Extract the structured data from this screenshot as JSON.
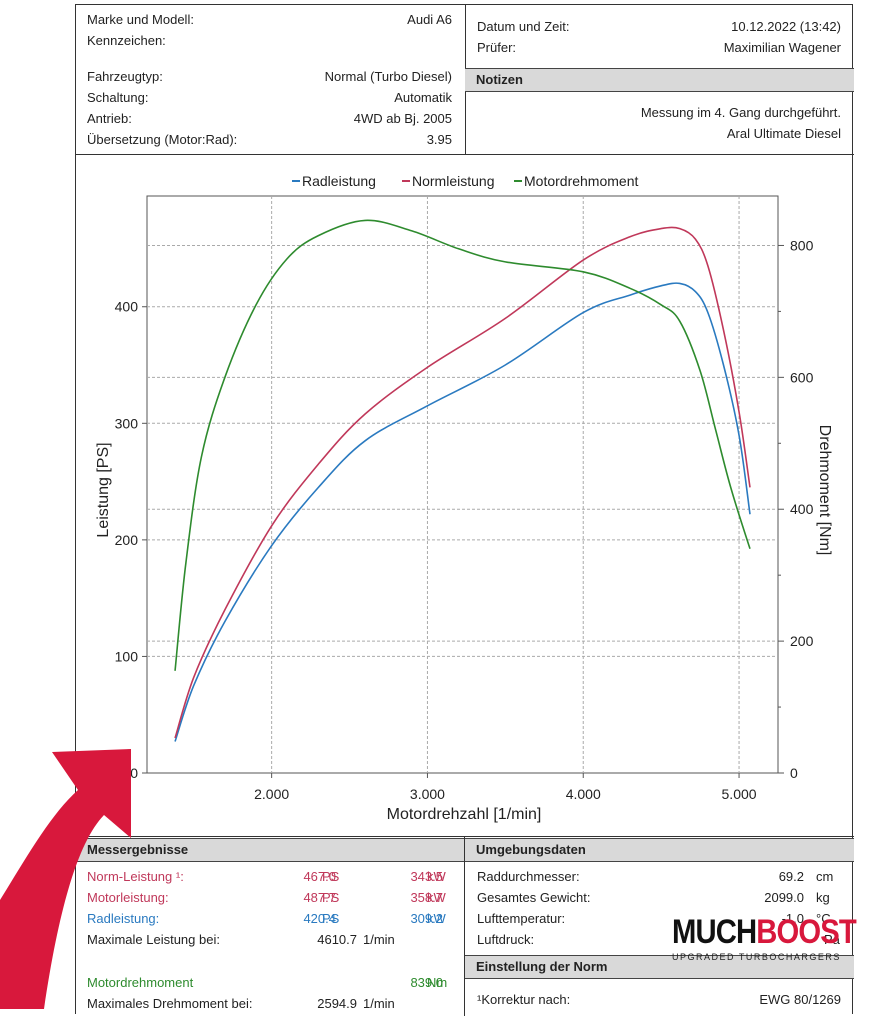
{
  "vehicle": {
    "make_label": "Marke und Modell:",
    "make_value": "Audi A6",
    "plate_label": "Kennzeichen:",
    "type_label": "Fahrzeugtyp:",
    "type_value": "Normal (Turbo Diesel)",
    "gear_label": "Schaltung:",
    "gear_value": "Automatik",
    "drive_label": "Antrieb:",
    "drive_value": "4WD ab Bj. 2005",
    "ratio_label": "Übersetzung (Motor:Rad):",
    "ratio_value": "3.95"
  },
  "test": {
    "date_label": "Datum und Zeit:",
    "date_value": "10.12.2022 (13:42)",
    "tester_label": "Prüfer:",
    "tester_value": "Maximilian Wagener"
  },
  "notes": {
    "title": "Notizen",
    "line1": "Messung im 4. Gang durchgeführt.",
    "line2": "Aral Ultimate Diesel"
  },
  "chart_data": {
    "type": "line",
    "xlabel": "Motordrehzahl [1/min]",
    "ylabel": "Leistung [PS]",
    "y2label": "Drehmoment [Nm]",
    "xlim": [
      1200,
      5250
    ],
    "ylim": [
      0,
      495
    ],
    "y2lim": [
      0,
      875
    ],
    "x_ticks": [
      2000,
      3000,
      4000,
      5000
    ],
    "x_tick_labels": [
      "2.000",
      "3.000",
      "4.000",
      "5.000"
    ],
    "y_ticks": [
      0,
      100,
      200,
      300,
      400
    ],
    "y_tick_labels": [
      "0",
      "100",
      "200",
      "300",
      "400"
    ],
    "y2_ticks": [
      0,
      200,
      400,
      600,
      800
    ],
    "y2_tick_labels": [
      "0",
      "200",
      "400",
      "600",
      "800"
    ],
    "grid": true,
    "legend_position": "top",
    "series": [
      {
        "name": "Radleistung",
        "axis": "left",
        "color": "#2a7ac0",
        "points": [
          [
            1380,
            27
          ],
          [
            1500,
            75
          ],
          [
            1700,
            130
          ],
          [
            2000,
            195
          ],
          [
            2300,
            245
          ],
          [
            2600,
            285
          ],
          [
            3000,
            315
          ],
          [
            3500,
            350
          ],
          [
            4000,
            395
          ],
          [
            4300,
            410
          ],
          [
            4500,
            418
          ],
          [
            4620,
            420
          ],
          [
            4720,
            413
          ],
          [
            4800,
            395
          ],
          [
            4900,
            350
          ],
          [
            5000,
            290
          ],
          [
            5070,
            222
          ]
        ]
      },
      {
        "name": "Normleistung",
        "axis": "left",
        "color": "#c0385a",
        "points": [
          [
            1380,
            30
          ],
          [
            1500,
            82
          ],
          [
            1700,
            140
          ],
          [
            2000,
            212
          ],
          [
            2300,
            265
          ],
          [
            2600,
            308
          ],
          [
            3000,
            348
          ],
          [
            3500,
            390
          ],
          [
            4000,
            440
          ],
          [
            4300,
            460
          ],
          [
            4500,
            467
          ],
          [
            4620,
            467
          ],
          [
            4720,
            458
          ],
          [
            4800,
            435
          ],
          [
            4900,
            380
          ],
          [
            5000,
            310
          ],
          [
            5070,
            245
          ]
        ]
      },
      {
        "name": "Motordrehmoment",
        "axis": "right",
        "color": "#2e8b2e",
        "points": [
          [
            1380,
            155
          ],
          [
            1450,
            320
          ],
          [
            1550,
            480
          ],
          [
            1700,
            600
          ],
          [
            1900,
            710
          ],
          [
            2100,
            780
          ],
          [
            2300,
            815
          ],
          [
            2600,
            838
          ],
          [
            2900,
            822
          ],
          [
            3200,
            795
          ],
          [
            3500,
            775
          ],
          [
            4000,
            760
          ],
          [
            4300,
            735
          ],
          [
            4500,
            710
          ],
          [
            4620,
            685
          ],
          [
            4750,
            610
          ],
          [
            4850,
            520
          ],
          [
            4950,
            430
          ],
          [
            5070,
            340
          ]
        ]
      }
    ]
  },
  "results": {
    "title": "Messergebnisse",
    "rows": [
      {
        "label": "Norm-Leistung ¹:",
        "ps": "467.0",
        "ps_unit": "PS",
        "kw": "343.5",
        "kw_unit": "kW"
      },
      {
        "label": "Motorleistung:",
        "ps": "487.7",
        "ps_unit": "PS",
        "kw": "358.7",
        "kw_unit": "kW"
      },
      {
        "label": "Radleistung:",
        "ps": "420.4",
        "ps_unit": "PS",
        "kw": "309.2",
        "kw_unit": "kW"
      }
    ],
    "max_power_label": "Maximale Leistung bei:",
    "max_power_value": "4610.7",
    "max_power_unit": "1/min",
    "torque_label": "Motordrehmoment",
    "torque_value": "839.0",
    "torque_unit": "Nm",
    "max_torque_label": "Maximales Drehmoment bei:",
    "max_torque_value": "2594.9",
    "max_torque_unit": "1/min"
  },
  "environment": {
    "title": "Umgebungsdaten",
    "rows": [
      {
        "label": "Raddurchmesser:",
        "value": "69.2",
        "unit": "cm"
      },
      {
        "label": "Gesamtes Gewicht:",
        "value": "2099.0",
        "unit": "kg"
      },
      {
        "label": "Lufttemperatur:",
        "value": "-1.0",
        "unit": "°C"
      },
      {
        "label": "Luftdruck:",
        "value": "",
        "unit": "Pa"
      }
    ]
  },
  "norm": {
    "title": "Einstellung der Norm",
    "label": "¹Korrektur nach:",
    "value": "EWG 80/1269"
  },
  "watermark": {
    "brand_part1": "MUCH",
    "brand_part2": "BOOST",
    "tagline": "UPGRADED TURBOCHARGERS"
  },
  "colors": {
    "radleistung": "#2a7ac0",
    "normleistung": "#c0385a",
    "motordrehmoment": "#2e8b2e",
    "header_bg": "#d9d9d9",
    "arrow": "#d8183c",
    "brand_red": "#d8183c"
  }
}
